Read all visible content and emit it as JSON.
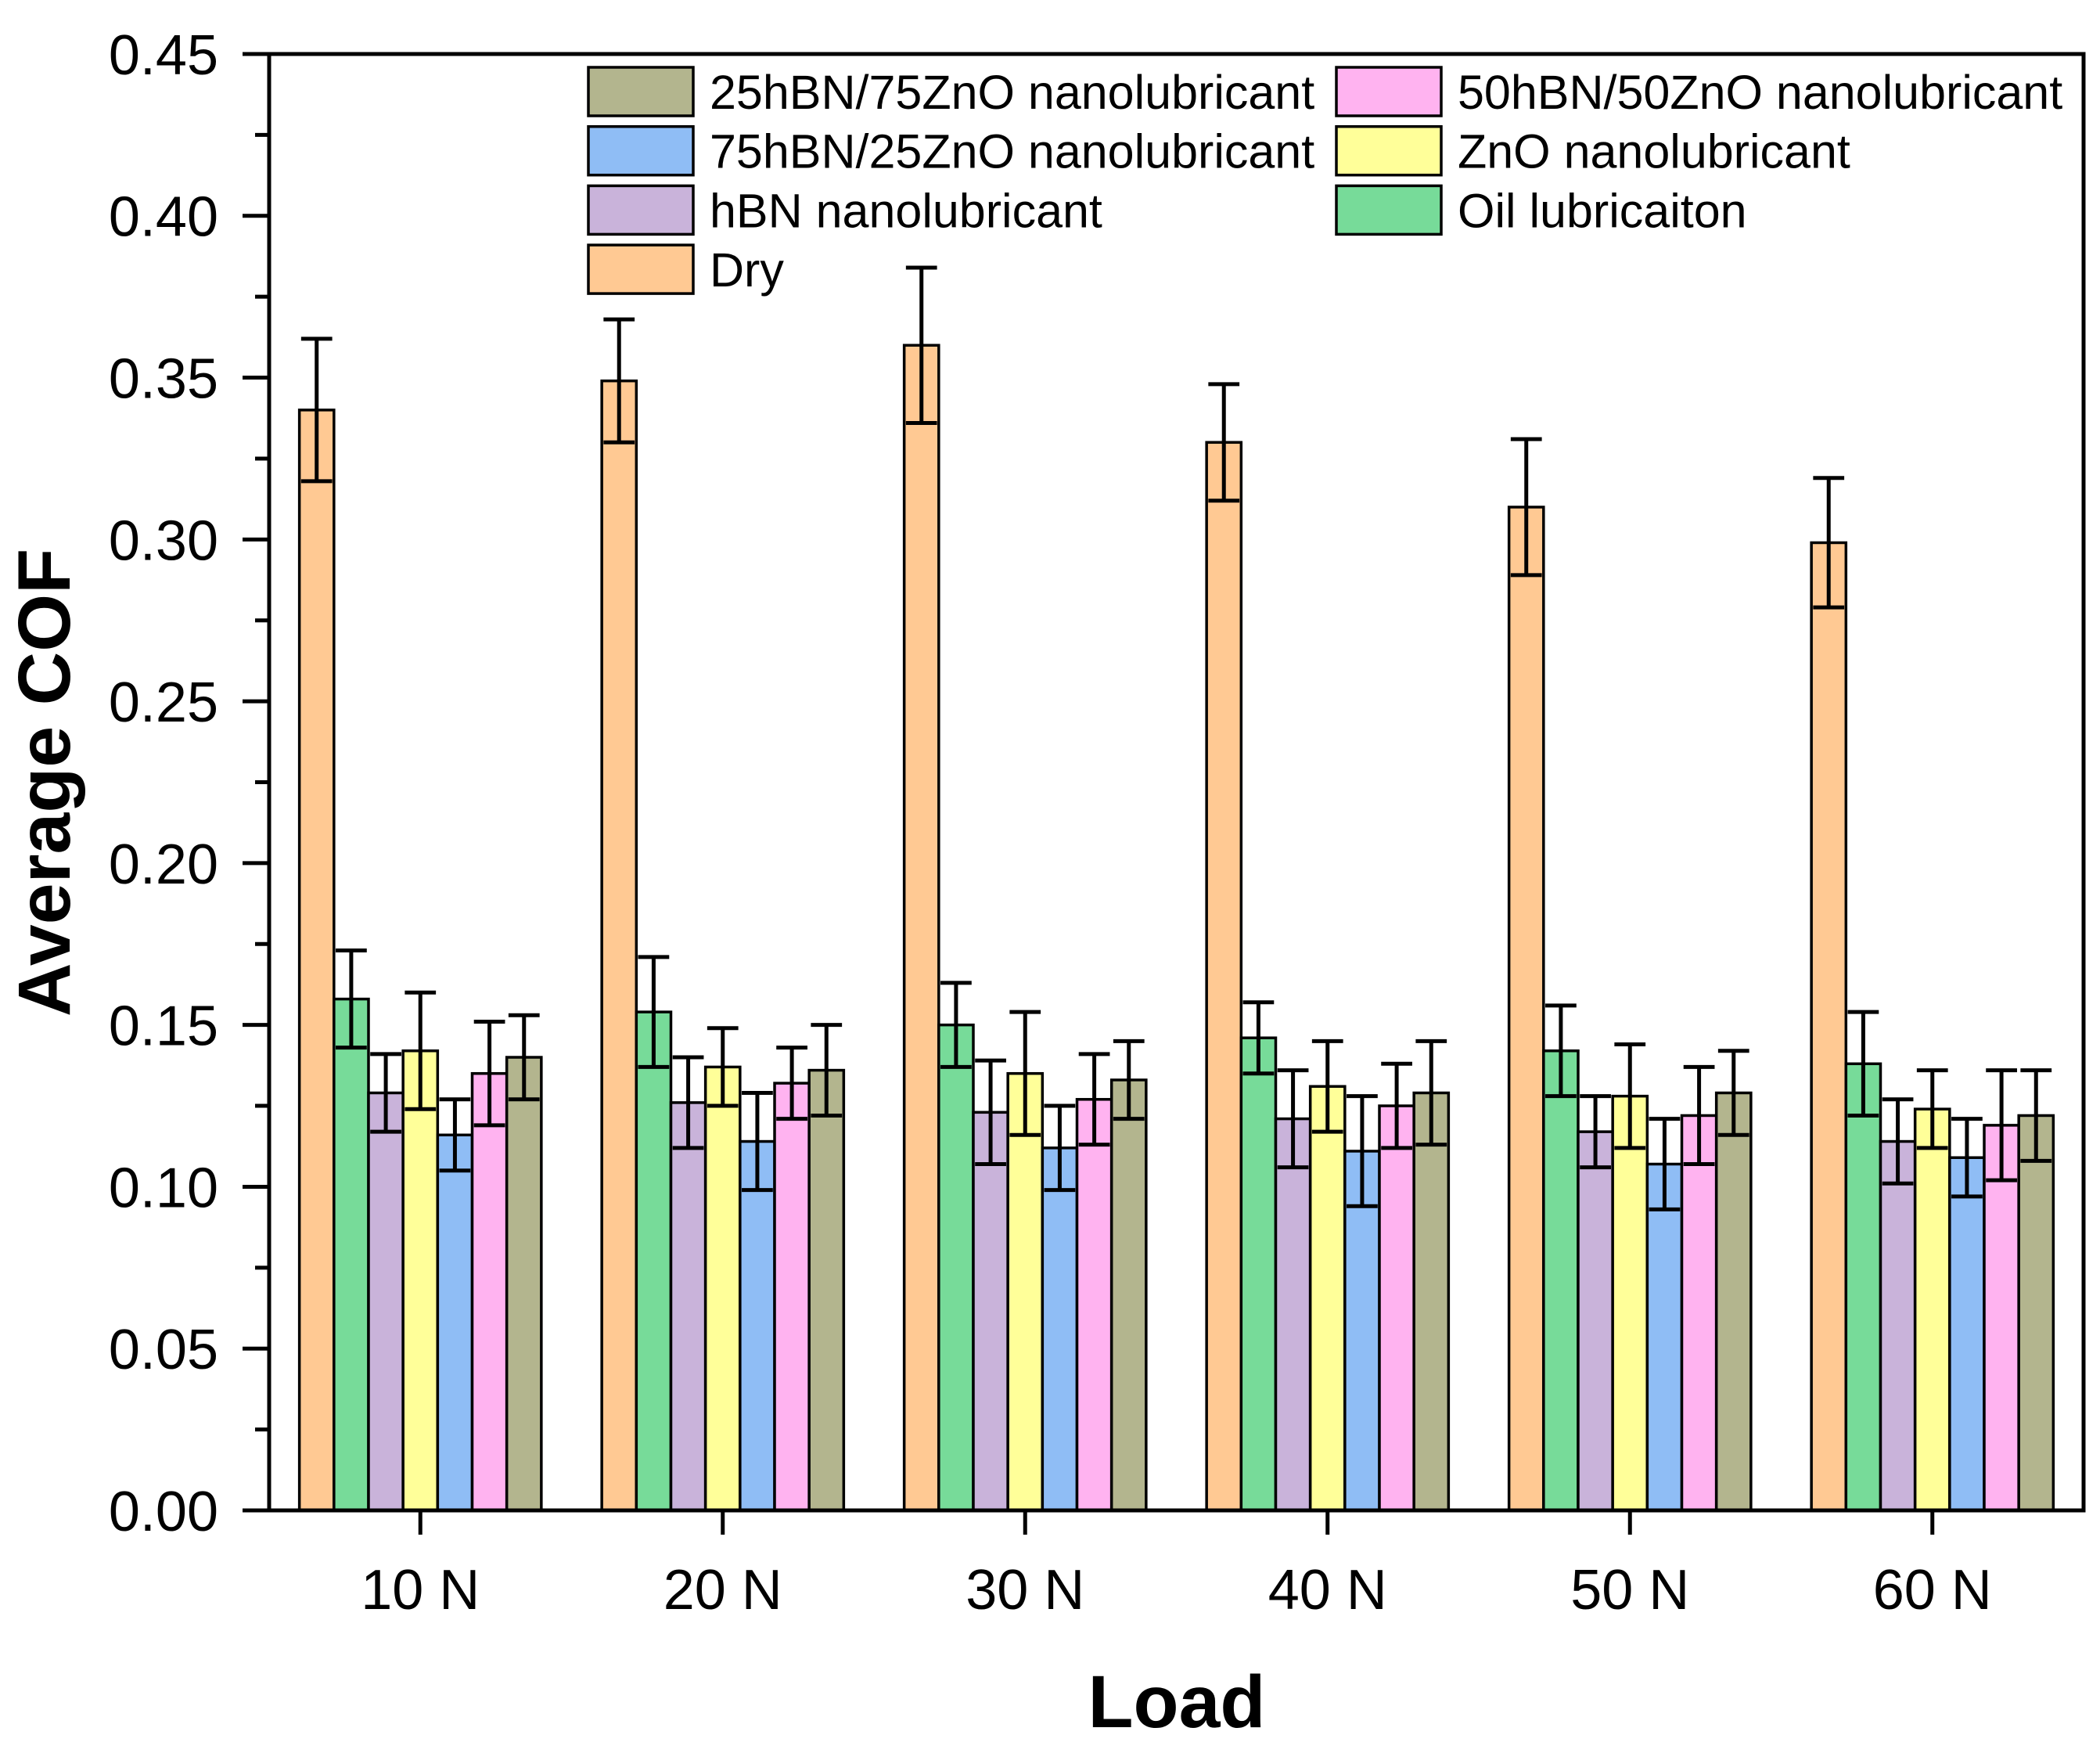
{
  "chart_data": {
    "type": "bar",
    "xlabel": "Load",
    "ylabel": "Average COF",
    "categories": [
      "10 N",
      "20 N",
      "30 N",
      "40 N",
      "50 N",
      "60 N"
    ],
    "ylim": [
      0,
      0.45
    ],
    "yticks": [
      "0.00",
      "0.05",
      "0.10",
      "0.15",
      "0.20",
      "0.25",
      "0.30",
      "0.35",
      "0.40",
      "0.45"
    ],
    "grid": false,
    "legend": {
      "position": "top-right",
      "reversed": true
    },
    "series": [
      {
        "name": "Dry",
        "color": "#FFC993",
        "values": [
          0.34,
          0.349,
          0.36,
          0.33,
          0.31,
          0.299
        ],
        "errors": [
          0.022,
          0.019,
          0.024,
          0.018,
          0.021,
          0.02
        ]
      },
      {
        "name": "Oil lubricaiton",
        "color": "#77DB99",
        "values": [
          0.158,
          0.154,
          0.15,
          0.146,
          0.142,
          0.138
        ],
        "errors": [
          0.015,
          0.017,
          0.013,
          0.011,
          0.014,
          0.016
        ]
      },
      {
        "name": "hBN nanolubricant",
        "color": "#C9B3DA",
        "values": [
          0.129,
          0.126,
          0.123,
          0.121,
          0.117,
          0.114
        ],
        "errors": [
          0.012,
          0.014,
          0.016,
          0.015,
          0.011,
          0.013
        ]
      },
      {
        "name": "ZnO nanolubricant",
        "color": "#FFFF99",
        "values": [
          0.142,
          0.137,
          0.135,
          0.131,
          0.128,
          0.124
        ],
        "errors": [
          0.018,
          0.012,
          0.019,
          0.014,
          0.016,
          0.012
        ]
      },
      {
        "name": "75hBN/25ZnO nanolubricant",
        "color": "#8FBDF5",
        "values": [
          0.116,
          0.114,
          0.112,
          0.111,
          0.107,
          0.109
        ],
        "errors": [
          0.011,
          0.015,
          0.013,
          0.017,
          0.014,
          0.012
        ]
      },
      {
        "name": "50hBN/50ZnO nanolubricant",
        "color": "#FFB3F0",
        "values": [
          0.135,
          0.132,
          0.127,
          0.125,
          0.122,
          0.119
        ],
        "errors": [
          0.016,
          0.011,
          0.014,
          0.013,
          0.015,
          0.017
        ]
      },
      {
        "name": "25hBN/75ZnO nanolubricant",
        "color": "#B3B58E",
        "values": [
          0.14,
          0.136,
          0.133,
          0.129,
          0.129,
          0.122
        ],
        "errors": [
          0.013,
          0.014,
          0.012,
          0.016,
          0.013,
          0.014
        ]
      }
    ]
  }
}
